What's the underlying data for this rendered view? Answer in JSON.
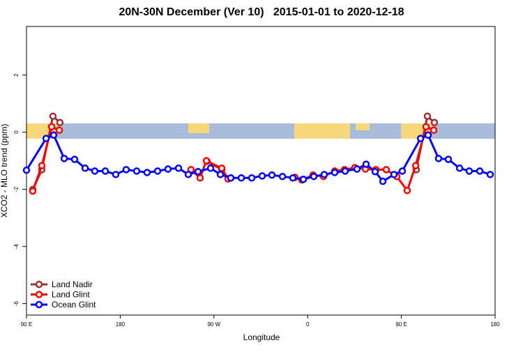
{
  "chart_data": {
    "type": "line",
    "title": "20N-30N December (Ver 10)   2015-01-01 to 2020-12-18",
    "x_label": "Longitude",
    "y_label": "XCO2 - MLO trend (ppm)",
    "xlim": [
      90,
      540
    ],
    "ylim": [
      -6.4,
      3.7
    ],
    "xticks": [
      {
        "value": 90,
        "label": "90 E"
      },
      {
        "value": 180,
        "label": "180"
      },
      {
        "value": 270,
        "label": "90 W"
      },
      {
        "value": 360,
        "label": "0"
      },
      {
        "value": 450,
        "label": "90 E"
      },
      {
        "value": 540,
        "label": "180"
      }
    ],
    "yticks": [
      -6,
      -4,
      -2,
      0,
      2
    ],
    "legend": "bottom-left",
    "series": [
      {
        "name": "Land Nadir",
        "color": "#a0302e",
        "x": [
          96.0,
          104.7,
          115.4,
          122.1,
          null,
          263.4,
          277.5,
          284.2,
          null,
          464.3,
          475.0,
          481.7
        ],
        "values": [
          -2.01,
          -1.31,
          0.56,
          0.34,
          null,
          -1.02,
          -1.31,
          -1.63,
          null,
          -1.31,
          0.56,
          0.34
        ]
      },
      {
        "name": "Land Glint",
        "color": "#ff0000",
        "x": [
          96.0,
          104.7,
          114.1,
          121.5,
          null,
          248.0,
          256.7,
          262.8,
          277.5,
          283.5,
          null,
          347.8,
          354.5,
          365.2,
          375.3,
          386.0,
          395.4,
          405.4,
          415.5,
          425.5,
          435.5,
          445.6,
          455.6,
          463.7,
          473.7,
          481.1
        ],
        "values": [
          -2.06,
          -1.17,
          0.19,
          0.07,
          null,
          -1.31,
          -1.6,
          -1.0,
          -1.26,
          -1.63,
          null,
          -1.58,
          -1.67,
          -1.5,
          -1.55,
          -1.36,
          -1.31,
          -1.24,
          -1.29,
          -1.31,
          -1.31,
          -1.55,
          -2.04,
          -1.17,
          0.19,
          0.07
        ]
      },
      {
        "name": "Ocean Glint",
        "color": "#0000ff",
        "x": [
          90,
          108.8,
          116.1,
          126.2,
          136.2,
          146.3,
          155.6,
          165.7,
          175.7,
          185.7,
          195.8,
          205.8,
          215.9,
          225.9,
          236.0,
          245.4,
          254.7,
          266.8,
          276.2,
          286.2,
          296.3,
          306.3,
          316.3,
          325.7,
          335.8,
          345.8,
          355.9,
          365.9,
          375.9,
          386.0,
          396.0,
          407.4,
          416.1,
          424.8,
          432.2,
          442.9,
          450.9,
          468.4,
          475.7,
          485.7,
          495.1,
          505.9,
          515.2,
          525.3,
          535.3
        ],
        "values": [
          -1.33,
          -0.22,
          -0.1,
          -0.92,
          -0.95,
          -1.26,
          -1.36,
          -1.36,
          -1.48,
          -1.31,
          -1.36,
          -1.41,
          -1.36,
          -1.29,
          -1.26,
          -1.48,
          -1.38,
          -1.26,
          -1.48,
          -1.6,
          -1.6,
          -1.6,
          -1.53,
          -1.5,
          -1.55,
          -1.6,
          -1.65,
          -1.55,
          -1.48,
          -1.41,
          -1.36,
          -1.29,
          -1.12,
          -1.38,
          -1.72,
          -1.48,
          -1.36,
          -0.22,
          -0.1,
          -0.92,
          -0.95,
          -1.26,
          -1.36,
          -1.36,
          -1.48
        ]
      }
    ]
  }
}
